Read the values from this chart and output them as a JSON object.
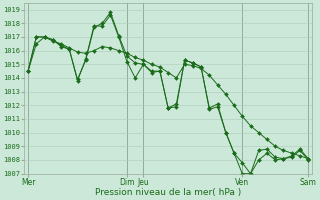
{
  "xlabel": "Pression niveau de la mer( hPa )",
  "ylim": [
    1007,
    1019.5
  ],
  "ytick_min": 1007,
  "ytick_max": 1019,
  "bg_color": "#cce8d8",
  "plot_bg_color": "#cce8d8",
  "line_color": "#1a6b1a",
  "grid_color": "#aaccbb",
  "xtick_labels": [
    "Mer",
    "Dim",
    "Jeu",
    "Ven",
    "Sam"
  ],
  "xtick_positions": [
    0,
    12,
    14,
    26,
    34
  ],
  "vline_positions": [
    0,
    12,
    14,
    26,
    34
  ],
  "lines": [
    [
      1014.5,
      1017.0,
      1017.0,
      1016.8,
      1016.3,
      1016.1,
      1013.9,
      1015.3,
      1017.7,
      1018.0,
      1018.8,
      1017.1,
      1015.6,
      1015.1,
      1015.0,
      1014.5,
      1014.5,
      1011.8,
      1011.9,
      1015.3,
      1015.1,
      1014.8,
      1011.7,
      1011.9,
      1010.0,
      1008.5,
      1007.8,
      1007.0,
      1008.7,
      1008.8,
      1008.2,
      1008.1,
      1008.3,
      1008.8,
      1008.1
    ],
    [
      1014.5,
      1016.5,
      1017.0,
      1016.7,
      1016.5,
      1016.2,
      1015.9,
      1015.8,
      1016.0,
      1016.3,
      1016.2,
      1016.0,
      1015.8,
      1015.5,
      1015.3,
      1015.0,
      1014.8,
      1014.4,
      1014.0,
      1015.0,
      1014.9,
      1014.7,
      1014.2,
      1013.5,
      1012.8,
      1012.0,
      1011.2,
      1010.5,
      1010.0,
      1009.5,
      1009.0,
      1008.7,
      1008.5,
      1008.3,
      1008.1
    ],
    [
      1014.5,
      1017.0,
      1017.0,
      1016.8,
      1016.4,
      1016.1,
      1013.8,
      1015.4,
      1017.8,
      1017.8,
      1018.6,
      1017.0,
      1015.2,
      1014.0,
      1015.0,
      1014.4,
      1014.5,
      1011.8,
      1012.1,
      1015.3,
      1015.1,
      1014.8,
      1011.8,
      1012.1,
      1010.0,
      1008.5,
      1007.0,
      1007.0,
      1008.0,
      1008.5,
      1008.0,
      1008.1,
      1008.2,
      1008.7,
      1008.0
    ]
  ],
  "n_points": 35,
  "xlim": [
    -0.5,
    34.5
  ]
}
